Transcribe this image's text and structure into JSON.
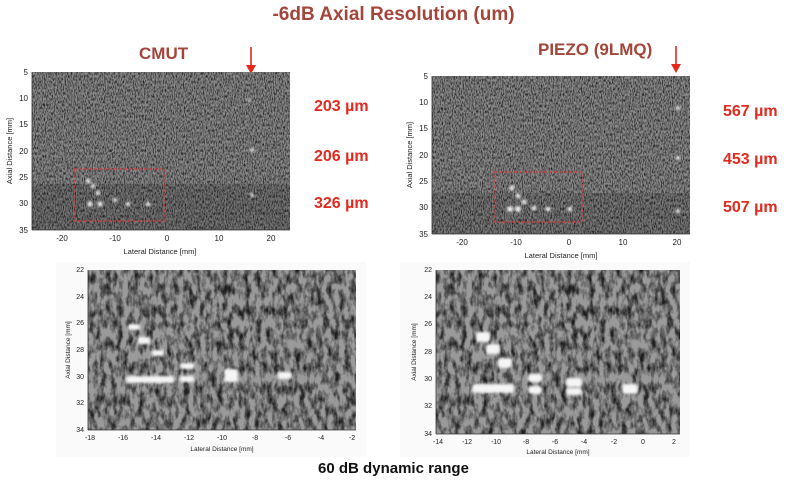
{
  "title": "-6dB Axial Resolution (um)",
  "footer": "60 dB dynamic range",
  "colors": {
    "heading": "#a4453a",
    "resolution": "#e22a1e",
    "box": "#d93a3a"
  },
  "panels": [
    {
      "heading": "CMUT",
      "resolutions": [
        "203 µm",
        "206 µm",
        "326 µm"
      ],
      "main_plot": {
        "y_ticks": [
          "5",
          "10",
          "15",
          "20",
          "25",
          "30",
          "35"
        ],
        "x_ticks": [
          "-20",
          "-10",
          "0",
          "10",
          "20"
        ],
        "ylabel": "Axial Distance [mm]",
        "xlabel": "Lateral Distance [mm]"
      },
      "zoom_plot": {
        "y_ticks": [
          "22",
          "24",
          "26",
          "28",
          "30",
          "32",
          "34"
        ],
        "x_ticks": [
          "-18",
          "-16",
          "-14",
          "-12",
          "-10",
          "-8",
          "-6",
          "-4",
          "-2"
        ],
        "ylabel": "Axial Distance [mm]",
        "xlabel": "Lateral Distance [mm]"
      }
    },
    {
      "heading": "PIEZO (9LMQ)",
      "resolutions": [
        "567 µm",
        "453 µm",
        "507 µm"
      ],
      "main_plot": {
        "y_ticks": [
          "5",
          "10",
          "15",
          "20",
          "25",
          "30",
          "35"
        ],
        "x_ticks": [
          "-20",
          "-10",
          "0",
          "10",
          "20"
        ],
        "ylabel": "Axial Distance [mm]",
        "xlabel": "Lateral Distance [mm]"
      },
      "zoom_plot": {
        "y_ticks": [
          "22",
          "24",
          "26",
          "28",
          "30",
          "32",
          "34"
        ],
        "x_ticks": [
          "-14",
          "-12",
          "-10",
          "-8",
          "-6",
          "-4",
          "-2",
          "0",
          "2"
        ],
        "ylabel": "Axial Distance [mm]",
        "xlabel": "Lateral Distance [mm]"
      }
    }
  ]
}
